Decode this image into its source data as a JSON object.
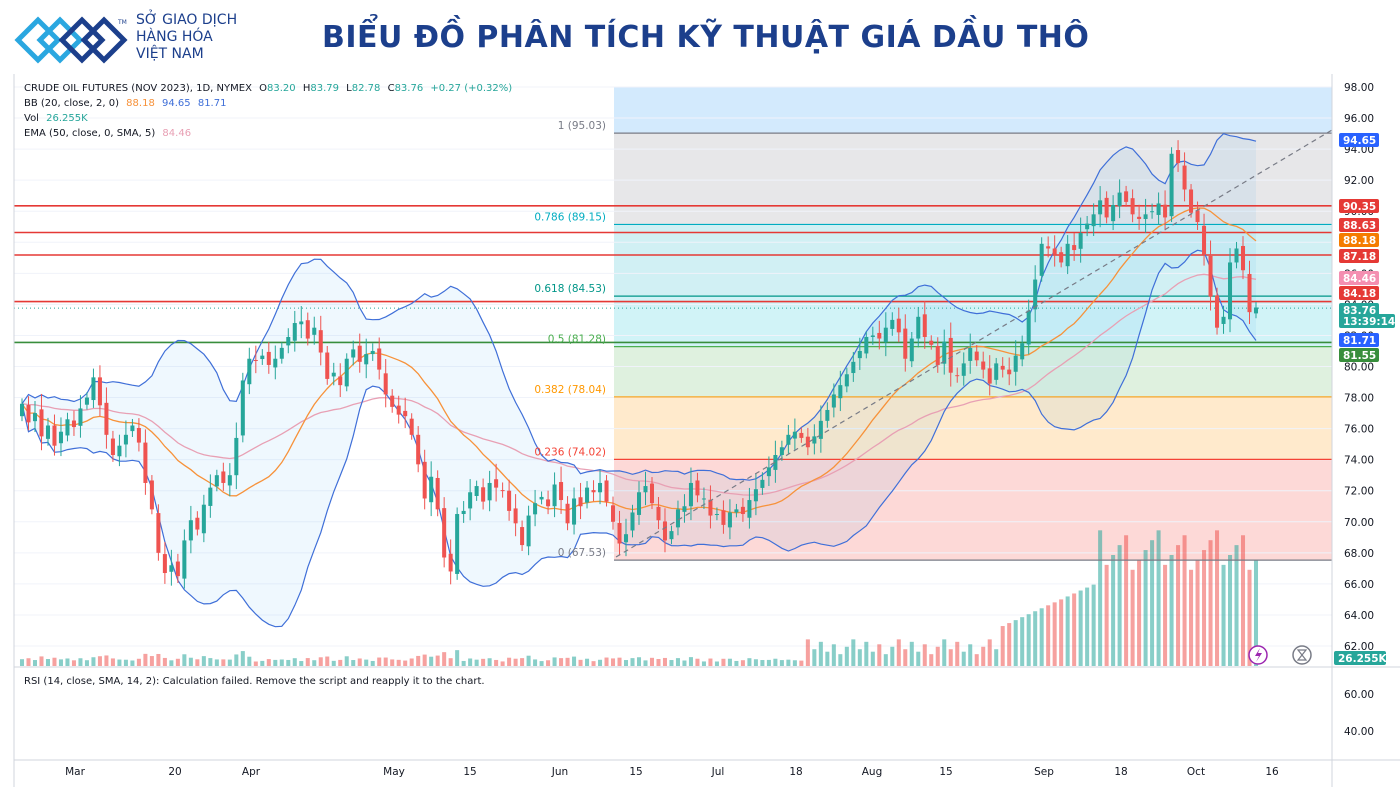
{
  "header": {
    "org_line1": "SỞ GIAO DỊCH",
    "org_line2": "HÀNG HÓA",
    "org_line3": "VIỆT NAM",
    "trademark": "TM",
    "title": "BIỂU ĐỒ PHÂN TÍCH KỸ THUẬT GIÁ DẦU THÔ"
  },
  "legend": {
    "symbol": "CRUDE OIL FUTURES (NOV 2023), 1D, NYMEX",
    "o_label": "O",
    "o_value": "83.20",
    "h_label": "H",
    "h_value": "83.79",
    "l_label": "L",
    "l_value": "82.78",
    "c_label": "C",
    "c_value": "83.76",
    "change": "+0.27 (+0.32%)",
    "bb_label": "BB (20, close, 2, 0)",
    "bb_basis": "88.18",
    "bb_upper": "94.65",
    "bb_lower": "81.71",
    "vol_label": "Vol",
    "vol_value": "26.255K",
    "ema_label": "EMA (50, close, 0, SMA, 5)",
    "ema_value": "84.46"
  },
  "rsi_label": "RSI (14, close, SMA, 14, 2): Calculation failed. Remove the script and reapply it to the chart.",
  "colors": {
    "up": "#26a69a",
    "down": "#ef5350",
    "bb_basis": "#f7923a",
    "bb_band": "#3f6fd8",
    "ema": "#e8a0b4",
    "red_line": "#e53935",
    "green_line": "#388e3c"
  },
  "chart_data": {
    "type": "candlestick",
    "price_axis": {
      "min": 62,
      "max": 98,
      "ticks": [
        "98.00",
        "96.00",
        "94.00",
        "92.00",
        "90.00",
        "88.00",
        "86.00",
        "84.00",
        "82.00",
        "80.00",
        "78.00",
        "76.00",
        "74.00",
        "72.00",
        "70.00",
        "68.00",
        "66.00",
        "64.00",
        "62.00"
      ]
    },
    "rsi_axis": {
      "ticks": [
        "60.00",
        "40.00"
      ]
    },
    "time_axis": [
      "Mar",
      "20",
      "Apr",
      "May",
      "15",
      "Jun",
      "15",
      "Jul",
      "18",
      "Aug",
      "15",
      "Sep",
      "18",
      "Oct",
      "16"
    ],
    "fib_levels": [
      {
        "label": "1 (95.03)",
        "value": 95.03,
        "color": "#787b86"
      },
      {
        "label": "0.786 (89.15)",
        "value": 89.15,
        "color": "#00acc1"
      },
      {
        "label": "0.618 (84.53)",
        "value": 84.53,
        "color": "#009688"
      },
      {
        "label": "0.5 (81.28)",
        "value": 81.28,
        "color": "#4caf50"
      },
      {
        "label": "0.382 (78.04)",
        "value": 78.04,
        "color": "#ff9800"
      },
      {
        "label": "0.236 (74.02)",
        "value": 74.02,
        "color": "#f44336"
      },
      {
        "label": "0 (67.53)",
        "value": 67.53,
        "color": "#787b86"
      }
    ],
    "horizontal_lines": [
      {
        "value": 90.35,
        "color": "#e53935"
      },
      {
        "value": 88.63,
        "color": "#e53935"
      },
      {
        "value": 87.18,
        "color": "#e53935"
      },
      {
        "value": 84.18,
        "color": "#e53935"
      },
      {
        "value": 81.55,
        "color": "#388e3c"
      }
    ],
    "price_tags": [
      {
        "value": "94.65",
        "price": 94.65,
        "bg": "#2962ff"
      },
      {
        "value": "90.35",
        "price": 90.35,
        "bg": "#e53935"
      },
      {
        "value": "88.63",
        "price": 88.63,
        "bg": "#e53935"
      },
      {
        "value": "88.18",
        "price": 88.18,
        "bg": "#f57c00"
      },
      {
        "value": "87.18",
        "price": 87.18,
        "bg": "#e53935"
      },
      {
        "value": "84.46",
        "price": 84.46,
        "bg": "#f48fb1"
      },
      {
        "value": "84.18",
        "price": 84.18,
        "bg": "#e53935"
      },
      {
        "value": "83.76",
        "price": 83.76,
        "bg": "#26a69a"
      },
      {
        "value": "13:39:14",
        "price": 82.9,
        "bg": "#26a69a"
      },
      {
        "value": "81.71",
        "price": 81.71,
        "bg": "#2962ff"
      },
      {
        "value": "81.55",
        "price": 81.55,
        "bg": "#388e3c"
      }
    ],
    "volume_tag": "26.255K",
    "closes": [
      77.6,
      76.4,
      77.0,
      75.5,
      76.2,
      74.9,
      75.8,
      76.6,
      76.1,
      77.3,
      78.0,
      79.3,
      77.5,
      75.6,
      74.3,
      74.9,
      75.6,
      76.2,
      75.1,
      72.5,
      70.8,
      68.0,
      66.7,
      67.2,
      66.5,
      68.8,
      70.1,
      69.5,
      71.1,
      72.2,
      73.0,
      72.5,
      73.0,
      75.4,
      79.1,
      80.5,
      80.4,
      80.7,
      80.1,
      80.5,
      81.2,
      81.9,
      82.8,
      82.9,
      81.8,
      82.5,
      80.9,
      79.2,
      79.6,
      78.8,
      80.5,
      81.1,
      80.3,
      80.8,
      81.0,
      79.8,
      78.2,
      77.4,
      76.9,
      76.8,
      75.6,
      73.7,
      71.5,
      72.9,
      70.8,
      67.7,
      66.8,
      70.5,
      70.7,
      71.9,
      72.3,
      71.3,
      72.5,
      72.2,
      72.0,
      70.7,
      69.9,
      68.5,
      70.4,
      71.2,
      71.6,
      71.0,
      72.4,
      71.4,
      69.9,
      71.5,
      71.0,
      72.2,
      71.9,
      72.5,
      71.3,
      70.0,
      68.6,
      69.2,
      70.6,
      71.9,
      72.3,
      71.2,
      70.1,
      68.8,
      69.4,
      70.8,
      71.0,
      72.5,
      71.7,
      71.5,
      70.4,
      70.5,
      69.8,
      70.6,
      70.8,
      70.5,
      71.4,
      72.1,
      72.7,
      73.5,
      74.3,
      74.8,
      75.6,
      75.8,
      75.4,
      74.8,
      75.5,
      76.5,
      77.2,
      78.2,
      78.8,
      79.5,
      80.3,
      81.0,
      81.9,
      82.0,
      81.8,
      82.5,
      83.0,
      82.2,
      80.5,
      81.8,
      83.2,
      81.9,
      81.4,
      80.1,
      81.6,
      79.6,
      79.4,
      80.2,
      81.2,
      80.4,
      79.8,
      78.9,
      80.2,
      79.8,
      79.5,
      80.7,
      81.5,
      83.6,
      85.6,
      87.9,
      87.6,
      87.2,
      86.7,
      87.9,
      87.5,
      88.6,
      89.2,
      89.8,
      90.7,
      89.6,
      90.4,
      91.2,
      90.6,
      89.8,
      89.5,
      89.8,
      90.0,
      90.5,
      89.6,
      93.7,
      93.1,
      91.4,
      89.9,
      89.3,
      87.2,
      84.5,
      82.5,
      83.2,
      86.7,
      87.6,
      86.2,
      83.5,
      83.8
    ]
  }
}
